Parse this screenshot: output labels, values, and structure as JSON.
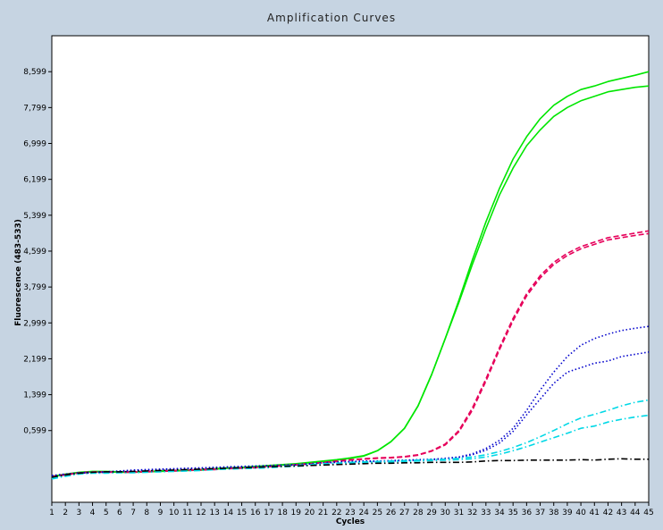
{
  "chart_data": {
    "type": "line",
    "title": "Amplification Curves",
    "xlabel": "Cycles",
    "ylabel": "Fluorescence (483-533)",
    "xlim": [
      1,
      45
    ],
    "ylim": [
      -1000,
      9400
    ],
    "grid": false,
    "y_ticks": [
      "0,599",
      "1,399",
      "2,199",
      "2,999",
      "3,799",
      "4,599",
      "5,399",
      "6,199",
      "6,999",
      "7,799",
      "8,599"
    ],
    "y_tick_values": [
      599,
      1399,
      2199,
      2999,
      3799,
      4599,
      5399,
      6199,
      6999,
      7799,
      8599
    ],
    "x": [
      1,
      2,
      3,
      4,
      5,
      6,
      7,
      8,
      9,
      10,
      11,
      12,
      13,
      14,
      15,
      16,
      17,
      18,
      19,
      20,
      21,
      22,
      23,
      24,
      25,
      26,
      27,
      28,
      29,
      30,
      31,
      32,
      33,
      34,
      35,
      36,
      37,
      38,
      39,
      40,
      41,
      42,
      43,
      44,
      45
    ],
    "series": [
      {
        "color": "#00e600",
        "style": "solid",
        "values": [
          -430,
          -380,
          -340,
          -320,
          -320,
          -330,
          -330,
          -320,
          -310,
          -300,
          -290,
          -280,
          -260,
          -240,
          -230,
          -210,
          -190,
          -170,
          -150,
          -120,
          -90,
          -60,
          -20,
          30,
          150,
          350,
          650,
          1150,
          1850,
          2650,
          3500,
          4400,
          5250,
          6000,
          6650,
          7150,
          7550,
          7850,
          8050,
          8200,
          8280,
          8380,
          8450,
          8520,
          8600
        ]
      },
      {
        "color": "#00e600",
        "style": "solid",
        "values": [
          -420,
          -370,
          -330,
          -310,
          -310,
          -320,
          -320,
          -310,
          -300,
          -290,
          -280,
          -270,
          -250,
          -230,
          -220,
          -200,
          -180,
          -160,
          -140,
          -110,
          -80,
          -50,
          -10,
          40,
          150,
          350,
          650,
          1150,
          1850,
          2650,
          3450,
          4300,
          5100,
          5850,
          6450,
          6950,
          7300,
          7600,
          7800,
          7950,
          8050,
          8150,
          8200,
          8250,
          8280
        ]
      },
      {
        "color": "#e6005a",
        "style": "dash",
        "values": [
          -420,
          -380,
          -340,
          -320,
          -320,
          -320,
          -320,
          -310,
          -300,
          -290,
          -280,
          -270,
          -260,
          -240,
          -230,
          -220,
          -200,
          -180,
          -160,
          -140,
          -110,
          -80,
          -50,
          -30,
          -10,
          0,
          20,
          60,
          150,
          300,
          600,
          1100,
          1750,
          2450,
          3100,
          3650,
          4050,
          4350,
          4550,
          4700,
          4800,
          4900,
          4950,
          5000,
          5050
        ]
      },
      {
        "color": "#e6005a",
        "style": "dash",
        "values": [
          -430,
          -390,
          -350,
          -330,
          -330,
          -330,
          -330,
          -320,
          -310,
          -300,
          -290,
          -280,
          -270,
          -250,
          -240,
          -230,
          -210,
          -190,
          -170,
          -150,
          -120,
          -90,
          -60,
          -40,
          -20,
          -10,
          10,
          50,
          140,
          280,
          570,
          1050,
          1700,
          2400,
          3050,
          3600,
          4000,
          4300,
          4500,
          4650,
          4750,
          4850,
          4900,
          4950,
          4990
        ]
      },
      {
        "color": "#0000cc",
        "style": "dot",
        "values": [
          -400,
          -370,
          -340,
          -330,
          -320,
          -300,
          -280,
          -270,
          -260,
          -250,
          -240,
          -230,
          -220,
          -210,
          -200,
          -190,
          -180,
          -170,
          -160,
          -140,
          -120,
          -100,
          -90,
          -80,
          -80,
          -70,
          -60,
          -50,
          -40,
          -20,
          10,
          80,
          200,
          380,
          650,
          1050,
          1500,
          1900,
          2250,
          2500,
          2650,
          2750,
          2830,
          2880,
          2920
        ]
      },
      {
        "color": "#0000cc",
        "style": "dot",
        "values": [
          -410,
          -380,
          -350,
          -340,
          -330,
          -310,
          -290,
          -280,
          -270,
          -260,
          -250,
          -240,
          -230,
          -220,
          -210,
          -200,
          -190,
          -180,
          -170,
          -150,
          -130,
          -110,
          -100,
          -90,
          -90,
          -80,
          -70,
          -60,
          -50,
          -30,
          0,
          60,
          160,
          320,
          580,
          950,
          1300,
          1650,
          1900,
          2000,
          2100,
          2150,
          2250,
          2300,
          2350
        ]
      },
      {
        "color": "#00d8e6",
        "style": "dashdot",
        "values": [
          -460,
          -400,
          -350,
          -330,
          -330,
          -320,
          -320,
          -310,
          -300,
          -290,
          -280,
          -270,
          -250,
          -240,
          -230,
          -220,
          -210,
          -190,
          -180,
          -160,
          -140,
          -130,
          -110,
          -100,
          -90,
          -80,
          -70,
          -60,
          -50,
          -40,
          -20,
          10,
          60,
          130,
          220,
          330,
          460,
          600,
          750,
          880,
          960,
          1050,
          1150,
          1230,
          1280
        ]
      },
      {
        "color": "#00d8e6",
        "style": "dashdot",
        "values": [
          -480,
          -420,
          -370,
          -350,
          -350,
          -340,
          -340,
          -330,
          -320,
          -310,
          -300,
          -290,
          -270,
          -260,
          -250,
          -240,
          -230,
          -210,
          -200,
          -180,
          -160,
          -150,
          -130,
          -120,
          -110,
          -100,
          -90,
          -80,
          -70,
          -60,
          -50,
          -30,
          10,
          70,
          150,
          240,
          340,
          440,
          540,
          650,
          700,
          790,
          850,
          900,
          940
        ]
      },
      {
        "color": "#000000",
        "style": "dashdot",
        "values": [
          -440,
          -390,
          -350,
          -330,
          -320,
          -320,
          -310,
          -300,
          -290,
          -280,
          -270,
          -260,
          -250,
          -240,
          -230,
          -220,
          -210,
          -200,
          -190,
          -180,
          -170,
          -160,
          -150,
          -140,
          -130,
          -130,
          -120,
          -120,
          -110,
          -110,
          -110,
          -100,
          -80,
          -70,
          -70,
          -60,
          -60,
          -60,
          -60,
          -50,
          -60,
          -40,
          -30,
          -40,
          -40
        ]
      }
    ]
  }
}
